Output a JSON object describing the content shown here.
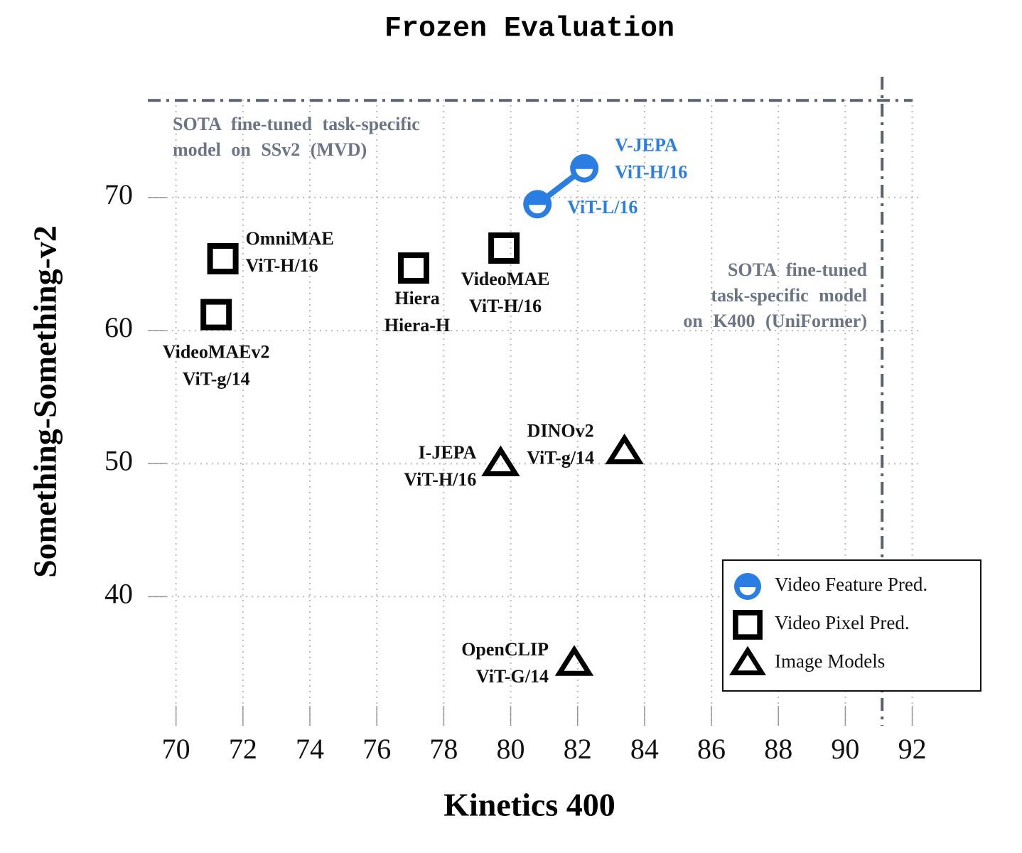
{
  "chart_data": {
    "type": "scatter",
    "title": "Frozen Evaluation",
    "x_label": "Kinetics 400",
    "y_label": "Something-Something-v2",
    "xlim": [
      69.2,
      92.2
    ],
    "ylim": [
      30.3,
      77.9
    ],
    "xticks": [
      70,
      72,
      74,
      76,
      78,
      80,
      82,
      84,
      86,
      88,
      90,
      92
    ],
    "yticks": [
      40,
      50,
      60,
      70
    ],
    "grid": true,
    "legend": "lower right",
    "series": [
      {
        "name": "Video Feature Pred.",
        "color": "#2a7de1",
        "marker": "half-circle",
        "connect": true,
        "x": [
          80.8,
          82.2
        ],
        "values": [
          69.5,
          72.2
        ],
        "labels": [
          [
            "ViT-L/16"
          ],
          [
            "V-JEPA",
            "ViT-H/16"
          ]
        ]
      },
      {
        "name": "Video Pixel Pred.",
        "color": "#000000",
        "marker": "square",
        "connect": false,
        "x": [
          71.4,
          71.2,
          77.1,
          79.8
        ],
        "values": [
          65.4,
          61.2,
          64.7,
          66.2
        ],
        "labels": [
          [
            "OmniMAE",
            "ViT-H/16"
          ],
          [
            "VideoMAEv2",
            "ViT-g/14"
          ],
          [
            "Hiera",
            "Hiera-H"
          ],
          [
            "VideoMAE",
            "ViT-H/16"
          ]
        ]
      },
      {
        "name": "Image Models",
        "color": "#000000",
        "marker": "triangle",
        "connect": false,
        "x": [
          79.7,
          83.4,
          81.9
        ],
        "values": [
          50.0,
          50.9,
          35.0
        ],
        "labels": [
          [
            "I-JEPA",
            "ViT-H/16"
          ],
          [
            "DINOv2",
            "ViT-g/14"
          ],
          [
            "OpenCLIP",
            "ViT-G/14"
          ]
        ]
      }
    ],
    "reference_lines": [
      {
        "axis": "y",
        "value": 77.3,
        "label": [
          "SOTA fine-tuned task-specific",
          "model on SSv2 (MVD)"
        ]
      },
      {
        "axis": "x",
        "value": 91.1,
        "label": [
          "SOTA fine-tuned",
          "task-specific model",
          "on K400 (UniFormer)"
        ]
      }
    ]
  }
}
